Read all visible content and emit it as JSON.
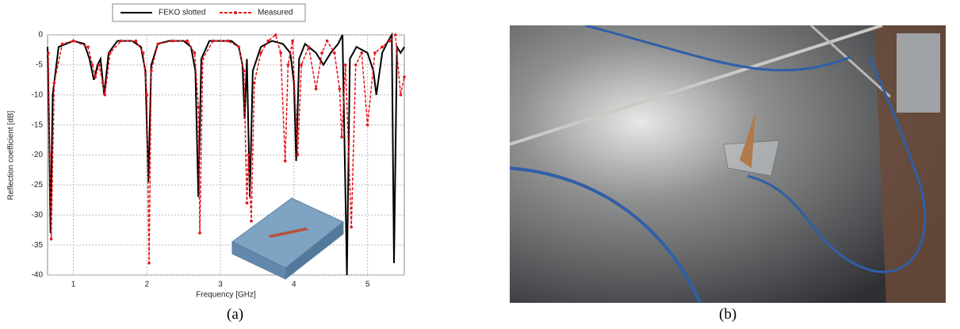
{
  "chart_data": {
    "type": "line",
    "caption": "(a)",
    "xlabel": "Frequency [GHz]",
    "ylabel": "Reflection coefficient [dB]",
    "xlim": [
      0.65,
      5.5
    ],
    "xticks": [
      1,
      2,
      3,
      4,
      5
    ],
    "ylim": [
      -40,
      0
    ],
    "yticks": [
      0,
      -5,
      -10,
      -15,
      -20,
      -25,
      -30,
      -35,
      -40
    ],
    "grid": true,
    "legend": "top",
    "series": [
      {
        "name": "FEKO slotted",
        "color": "#000000",
        "style": "solid",
        "markers": false,
        "x": [
          0.65,
          0.67,
          0.69,
          0.72,
          0.8,
          1.0,
          1.15,
          1.22,
          1.28,
          1.33,
          1.37,
          1.42,
          1.48,
          1.6,
          1.8,
          1.92,
          1.98,
          2.02,
          2.06,
          2.15,
          2.3,
          2.5,
          2.6,
          2.66,
          2.7,
          2.74,
          2.85,
          3.0,
          3.15,
          3.25,
          3.3,
          3.33,
          3.36,
          3.4,
          3.44,
          3.55,
          3.7,
          3.85,
          3.95,
          4.0,
          4.03,
          4.07,
          4.15,
          4.3,
          4.4,
          4.5,
          4.6,
          4.66,
          4.72,
          4.76,
          4.85,
          5.0,
          5.08,
          5.12,
          5.2,
          5.28,
          5.33,
          5.36,
          5.4,
          5.45,
          5.5
        ],
        "values": [
          -2,
          -15,
          -33,
          -10,
          -2,
          -1,
          -1.5,
          -4,
          -7.5,
          -5,
          -4,
          -10,
          -3,
          -1,
          -1,
          -2,
          -6,
          -24.5,
          -5,
          -1.5,
          -1,
          -1,
          -2,
          -6,
          -27,
          -4,
          -1,
          -1,
          -1,
          -2,
          -5,
          -14,
          -4,
          -27,
          -6,
          -2,
          -1,
          -1.5,
          -3,
          -8,
          -21,
          -4,
          -1.5,
          -3,
          -5,
          -3,
          -1.5,
          0,
          -40,
          -4,
          -2,
          -3,
          -6,
          -10,
          -3,
          -1,
          0,
          -38,
          -2,
          -3,
          -2
        ]
      },
      {
        "name": "Measured",
        "color": "#e8141c",
        "style": "dashed",
        "markers": true,
        "x": [
          0.66,
          0.68,
          0.7,
          0.74,
          0.85,
          1.0,
          1.2,
          1.26,
          1.3,
          1.35,
          1.4,
          1.43,
          1.5,
          1.65,
          1.85,
          1.95,
          2.0,
          2.03,
          2.06,
          2.15,
          2.35,
          2.55,
          2.65,
          2.7,
          2.72,
          2.76,
          2.9,
          3.1,
          3.25,
          3.32,
          3.36,
          3.38,
          3.42,
          3.46,
          3.55,
          3.65,
          3.75,
          3.82,
          3.88,
          3.92,
          3.98,
          4.05,
          4.1,
          4.2,
          4.3,
          4.38,
          4.45,
          4.55,
          4.62,
          4.65,
          4.7,
          4.78,
          4.84,
          4.92,
          5.0,
          5.1,
          5.2,
          5.3,
          5.38,
          5.45,
          5.5
        ],
        "values": [
          -3,
          -20,
          -34,
          -8,
          -1.5,
          -1,
          -2,
          -5,
          -7,
          -5,
          -8,
          -10,
          -3,
          -1,
          -1,
          -3,
          -10,
          -38,
          -6,
          -1.5,
          -1,
          -1,
          -3,
          -12,
          -33,
          -4,
          -1,
          -1,
          -2,
          -6,
          -28,
          -20,
          -31,
          -8,
          -3,
          -1,
          0,
          -3,
          -21,
          -5,
          -1,
          -20,
          -5,
          -2,
          -9,
          -3,
          -1,
          -3,
          -9,
          -17,
          -5,
          -32,
          -5,
          -3,
          -15,
          -3,
          -2,
          -1,
          0,
          -10,
          -7
        ]
      }
    ]
  },
  "photo": {
    "caption": "(b)"
  }
}
